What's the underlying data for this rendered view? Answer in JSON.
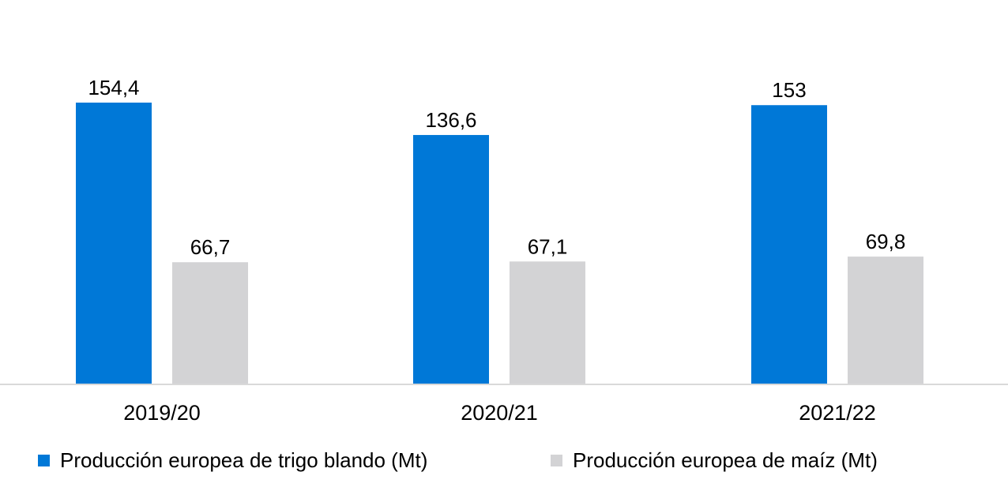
{
  "chart_data": {
    "type": "bar",
    "categories": [
      "2019/20",
      "2020/21",
      "2021/22"
    ],
    "series": [
      {
        "name": "Producción europea de trigo blando (Mt)",
        "values": [
          154.4,
          136.6,
          153
        ],
        "labels": [
          "154,4",
          "136,6",
          "153"
        ],
        "color": "#0078D7"
      },
      {
        "name": "Producción europea de maíz (Mt)",
        "values": [
          66.7,
          67.1,
          69.8
        ],
        "labels": [
          "66,7",
          "67,1",
          "69,8"
        ],
        "color": "#D3D3D5"
      }
    ],
    "ylim": [
      0,
      160
    ],
    "grid": false,
    "legend_position": "bottom",
    "xlabel": "",
    "ylabel": ""
  }
}
